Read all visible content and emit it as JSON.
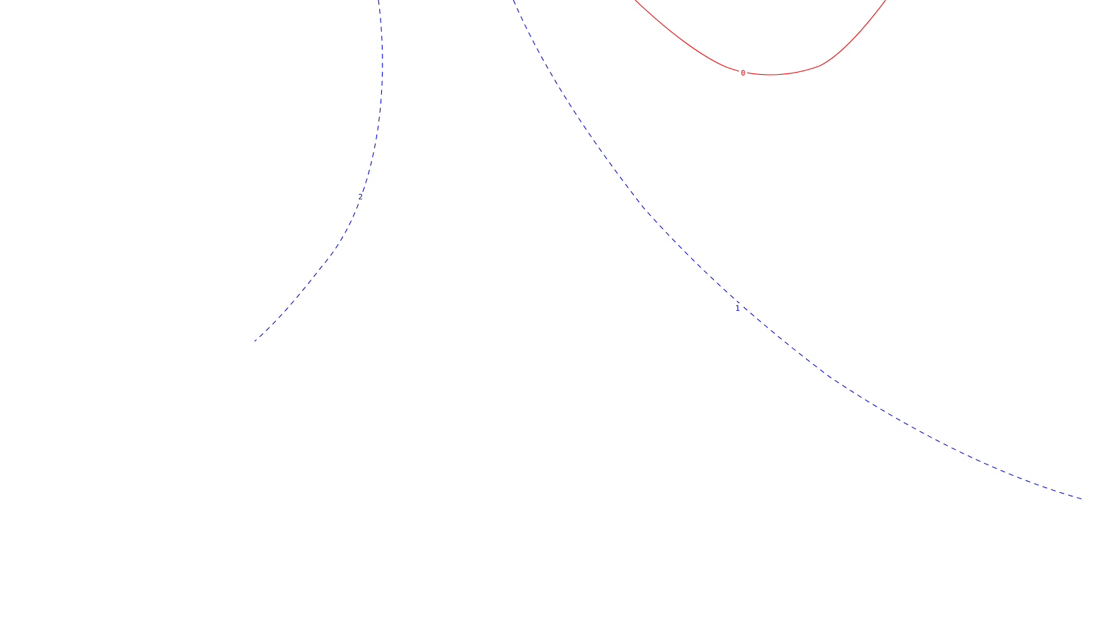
{
  "chart_data": {
    "type": "contour",
    "grid": false,
    "axes_visible": false,
    "contours": [
      {
        "level_label": "0",
        "color": "#ff0000",
        "line_style": "solid"
      },
      {
        "level_label": "1",
        "color": "#0000ff",
        "line_style": "dashed"
      },
      {
        "level_label": "2",
        "color": "#0000ff",
        "line_style": "dashed"
      }
    ]
  }
}
